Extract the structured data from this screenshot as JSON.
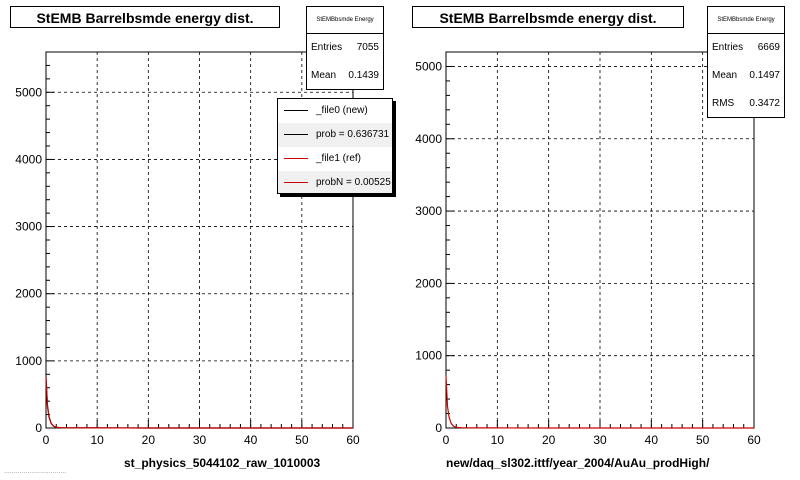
{
  "panels": [
    {
      "title": "StEMB Barrelbsmde energy dist.",
      "stats": {
        "header": "StEMBbsmde Energy",
        "rows": [
          {
            "key": "Entries",
            "value": "7055"
          },
          {
            "key": "Mean",
            "value": "0.1439"
          }
        ]
      },
      "legend": [
        {
          "label": "_file0 (new)",
          "color": "#000000"
        },
        {
          "label": "prob = 0.636731",
          "color": "#000000"
        },
        {
          "label": "_file1 (ref)",
          "color": "#cc0000"
        },
        {
          "label": "probN = 0.00525",
          "color": "#cc0000"
        }
      ],
      "x_title": "st_physics_5044102_raw_1010003"
    },
    {
      "title": "StEMB Barrelbsmde energy dist.",
      "stats": {
        "header": "StEMBbsmde Energy",
        "rows": [
          {
            "key": "Entries",
            "value": "6669"
          },
          {
            "key": "Mean",
            "value": "0.1497"
          },
          {
            "key": "RMS",
            "value": "0.3472"
          }
        ]
      },
      "legend": [],
      "x_title": "new/daq_sl302.ittf/year_2004/AuAu_prodHigh/"
    }
  ],
  "footer_text": "................................",
  "chart_data": [
    {
      "type": "line",
      "title": "StEMB Barrelbsmde energy dist.",
      "xlabel": "st_physics_5044102_raw_1010003",
      "xlim": [
        0,
        60
      ],
      "ylim": [
        0,
        5600
      ],
      "x_ticks": [
        0,
        10,
        20,
        30,
        40,
        50,
        60
      ],
      "y_ticks": [
        1000,
        2000,
        3000,
        4000,
        5000
      ],
      "grid": true,
      "x": [
        0,
        0.3,
        0.6,
        1,
        1.5,
        2,
        3,
        5,
        10,
        20,
        40,
        60
      ],
      "series": [
        {
          "color": "#000000",
          "values": [
            750,
            320,
            160,
            70,
            25,
            10,
            4,
            2,
            1,
            0,
            0,
            0
          ]
        },
        {
          "color": "#cc0000",
          "values": [
            760,
            330,
            165,
            72,
            26,
            11,
            4,
            2,
            1,
            0,
            0,
            0
          ]
        }
      ]
    },
    {
      "type": "line",
      "title": "StEMB Barrelbsmde energy dist.",
      "xlabel": "new/daq_sl302.ittf/year_2004/AuAu_prodHigh/",
      "xlim": [
        0,
        60
      ],
      "ylim": [
        0,
        5200
      ],
      "x_ticks": [
        0,
        10,
        20,
        30,
        40,
        50,
        60
      ],
      "y_ticks": [
        1000,
        2000,
        3000,
        4000,
        5000
      ],
      "grid": true,
      "x": [
        0,
        0.3,
        0.6,
        1,
        1.5,
        2,
        3,
        5,
        10,
        20,
        40,
        60
      ],
      "series": [
        {
          "color": "#cc0000",
          "values": [
            720,
            300,
            150,
            65,
            22,
            9,
            4,
            2,
            1,
            0,
            0,
            0
          ]
        }
      ]
    }
  ]
}
